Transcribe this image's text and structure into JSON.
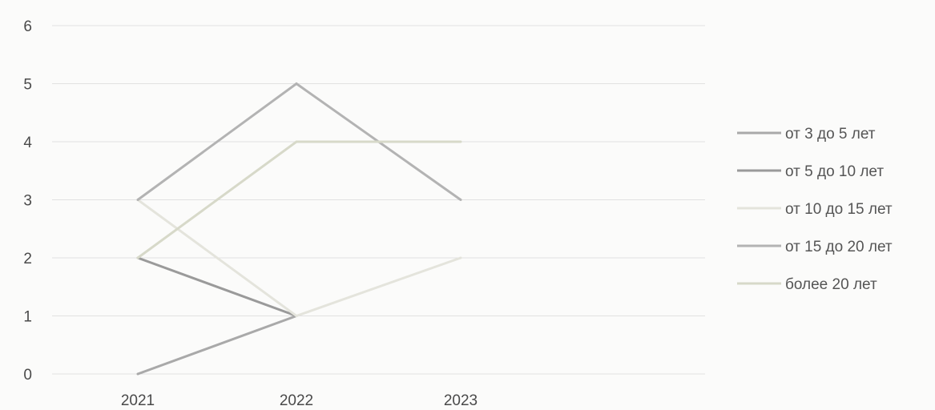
{
  "chart_data": {
    "type": "line",
    "title": "",
    "xlabel": "",
    "ylabel": "",
    "categories": [
      "2021",
      "2022",
      "2023"
    ],
    "ylim": [
      0,
      6
    ],
    "yticks": [
      0,
      1,
      2,
      3,
      4,
      5,
      6
    ],
    "grid": true,
    "legend_position": "right",
    "series": [
      {
        "name": "от 3 до 5 лет",
        "color": "#a9a9a9",
        "values": [
          0,
          1,
          null
        ]
      },
      {
        "name": "от 5 до 10 лет",
        "color": "#9a9a9a",
        "values": [
          2,
          1,
          null
        ]
      },
      {
        "name": "от 10 до 15 лет",
        "color": "#e4e4dc",
        "values": [
          3,
          1,
          2
        ]
      },
      {
        "name": "от 15 до 20 лет",
        "color": "#b3b3b3",
        "values": [
          3,
          5,
          3
        ]
      },
      {
        "name": "более 20 лет",
        "color": "#d7d9c9",
        "values": [
          2,
          4,
          4
        ]
      }
    ]
  }
}
